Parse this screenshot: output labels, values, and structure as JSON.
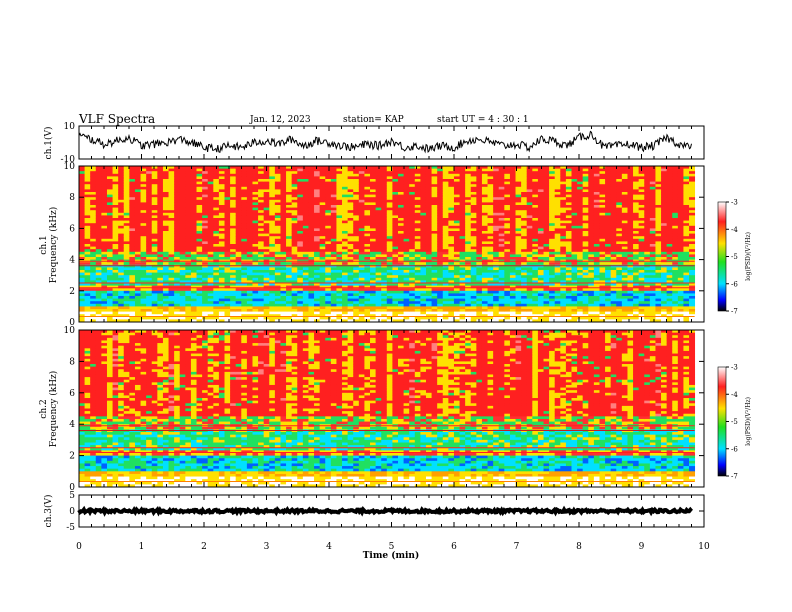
{
  "header": {
    "title": "VLF Spectra",
    "date": "Jan. 12, 2023",
    "station": "station= KAP",
    "start": "start  UT =  4 : 30 : 1"
  },
  "chart_data": [
    {
      "type": "line",
      "panel": "waveform-top",
      "ylabel": "ch.1(V)",
      "ylim": [
        -10,
        10
      ],
      "yticks": [
        "10",
        "-10"
      ],
      "xlim": [
        0,
        10
      ],
      "x": [
        0,
        0.2,
        0.4,
        0.6,
        0.8,
        1.0,
        1.2,
        1.4,
        1.6,
        1.8,
        2.0,
        2.2,
        2.4,
        2.6,
        2.8,
        3.0,
        3.2,
        3.4,
        3.6,
        3.8,
        4.0,
        4.2,
        4.4,
        4.6,
        4.8,
        5.0,
        5.2,
        5.4,
        5.6,
        5.8,
        6.0,
        6.2,
        6.4,
        6.6,
        6.8,
        7.0,
        7.2,
        7.4,
        7.6,
        7.8,
        8.0,
        8.2,
        8.4,
        8.6,
        8.8,
        9.0,
        9.2,
        9.4,
        9.6,
        9.8
      ],
      "values": [
        4,
        2,
        -1,
        1,
        3,
        -2,
        -1,
        0,
        2,
        0,
        -3,
        -4,
        -2,
        -3,
        0,
        1,
        -1,
        2,
        -2,
        1,
        0,
        -2,
        -3,
        -1,
        -2,
        1,
        -3,
        -2,
        -4,
        -2,
        -3,
        1,
        2,
        0,
        -2,
        -1,
        -3,
        2,
        1,
        -2,
        3,
        5,
        -3,
        -2,
        -1,
        -3,
        -2,
        3,
        -1,
        -3
      ],
      "color": "#000000"
    },
    {
      "type": "heatmap",
      "panel": "spectrogram-ch1",
      "ylabel": "ch.1\nFrequency (kHz)",
      "ylim": [
        0,
        10
      ],
      "yticks": [
        "0",
        "2",
        "4",
        "6",
        "8",
        "10"
      ],
      "xlim": [
        0,
        10
      ],
      "colorbar": {
        "range": [
          -7,
          -3
        ],
        "ticks": [
          "-3",
          "-4",
          "-5",
          "-6",
          "-7"
        ],
        "label": "log(PSD)(V²/Hz)"
      }
    },
    {
      "type": "heatmap",
      "panel": "spectrogram-ch2",
      "ylabel": "ch.2\nFrequency (kHz)",
      "ylim": [
        0,
        10
      ],
      "yticks": [
        "0",
        "2",
        "4",
        "6",
        "8",
        "10"
      ],
      "xlim": [
        0,
        10
      ],
      "colorbar": {
        "range": [
          -7,
          -3
        ],
        "ticks": [
          "-3",
          "-4",
          "-5",
          "-6",
          "-7"
        ],
        "label": "log(PSD)(V²/Hz)"
      }
    },
    {
      "type": "line",
      "panel": "waveform-bottom",
      "ylabel": "ch.3(V)",
      "ylim": [
        -5,
        5
      ],
      "yticks": [
        "5",
        "0",
        "-5"
      ],
      "xlim": [
        0,
        10
      ],
      "x": [
        0,
        9.8
      ],
      "values": [
        0,
        0
      ],
      "color": "#000000"
    }
  ],
  "xaxis": {
    "label": "Time (min)",
    "ticks": [
      "0",
      "1",
      "2",
      "3",
      "4",
      "5",
      "6",
      "7",
      "8",
      "9",
      "10"
    ]
  },
  "colors": {
    "spectrum_high": "#ff2020",
    "spectrum_mid": "#ffe000",
    "spectrum_low": "#20e060",
    "spectrum_lower": "#00e0ff",
    "spectrum_min": "#0000ff"
  }
}
